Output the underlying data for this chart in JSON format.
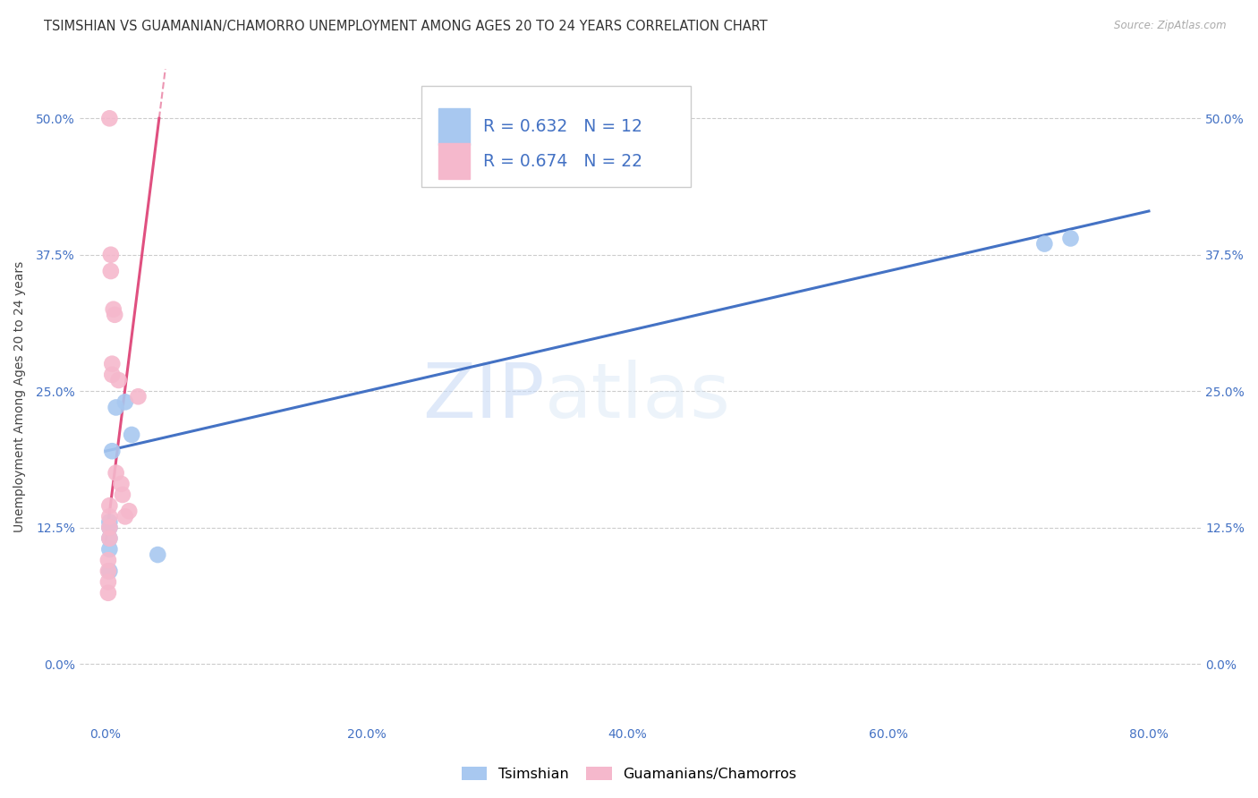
{
  "title": "TSIMSHIAN VS GUAMANIAN/CHAMORRO UNEMPLOYMENT AMONG AGES 20 TO 24 YEARS CORRELATION CHART",
  "source": "Source: ZipAtlas.com",
  "xlabel_ticks": [
    "0.0%",
    "20.0%",
    "40.0%",
    "60.0%",
    "80.0%"
  ],
  "xlabel_tick_vals": [
    0.0,
    0.2,
    0.4,
    0.6,
    0.8
  ],
  "ylabel": "Unemployment Among Ages 20 to 24 years",
  "ylabel_ticks": [
    "0.0%",
    "12.5%",
    "25.0%",
    "37.5%",
    "50.0%"
  ],
  "ylabel_tick_vals": [
    0.0,
    0.125,
    0.25,
    0.375,
    0.5
  ],
  "xlim": [
    -0.02,
    0.84
  ],
  "ylim": [
    -0.055,
    0.545
  ],
  "tsimshian_x": [
    0.003,
    0.003,
    0.003,
    0.003,
    0.003,
    0.005,
    0.008,
    0.015,
    0.02,
    0.04,
    0.72,
    0.74
  ],
  "tsimshian_y": [
    0.125,
    0.13,
    0.115,
    0.105,
    0.085,
    0.195,
    0.235,
    0.24,
    0.21,
    0.1,
    0.385,
    0.39
  ],
  "guamanian_x": [
    0.002,
    0.002,
    0.002,
    0.002,
    0.003,
    0.003,
    0.003,
    0.003,
    0.003,
    0.004,
    0.004,
    0.005,
    0.005,
    0.006,
    0.007,
    0.008,
    0.01,
    0.012,
    0.013,
    0.015,
    0.018,
    0.025
  ],
  "guamanian_y": [
    0.095,
    0.085,
    0.075,
    0.065,
    0.145,
    0.135,
    0.125,
    0.115,
    0.5,
    0.375,
    0.36,
    0.275,
    0.265,
    0.325,
    0.32,
    0.175,
    0.26,
    0.165,
    0.155,
    0.135,
    0.14,
    0.245
  ],
  "tsimshian_color": "#a8c8f0",
  "guamanian_color": "#f5b8cc",
  "tsimshian_line_color": "#4472c4",
  "guamanian_line_color": "#e05080",
  "tsimshian_slope": 0.275,
  "tsimshian_intercept": 0.195,
  "guamanian_slope": 9.5,
  "guamanian_intercept": 0.11,
  "watermark_zip": "ZIP",
  "watermark_atlas": "atlas",
  "background_color": "#ffffff",
  "grid_color": "#cccccc",
  "tick_color": "#4472c4",
  "title_fontsize": 10.5,
  "axis_label_fontsize": 10,
  "tick_fontsize": 10,
  "legend_box_color": "#cccccc"
}
